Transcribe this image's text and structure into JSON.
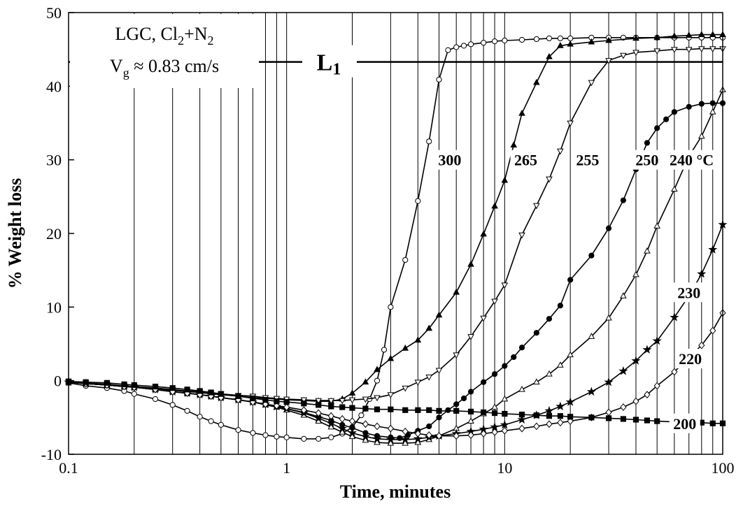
{
  "chart_data": {
    "type": "line",
    "xscale": "log",
    "xlim": [
      0.1,
      100
    ],
    "ylim": [
      -10,
      50
    ],
    "xlabel": "Time, minutes",
    "ylabel": "% Weight loss",
    "xticks": [
      "0.1",
      "1",
      "10",
      "100"
    ],
    "yticks": [
      "-10",
      "0",
      "10",
      "20",
      "30",
      "40",
      "50"
    ],
    "grid": "vertical log gridlines",
    "legend_box": {
      "line1": "LGC, Cl",
      "line1_sub1": "2",
      "line1_mid": "+N",
      "line1_sub2": "2",
      "line2": "V",
      "line2_sub": "g",
      "line2_rest": " ≈ 0.83 cm/s"
    },
    "reference_line": {
      "label": "L",
      "label_sub": "1",
      "y": 43.3
    },
    "series": [
      {
        "name": "300",
        "marker": "open-circle",
        "x": [
          0.1,
          0.12,
          0.15,
          0.18,
          0.2,
          0.25,
          0.3,
          0.35,
          0.4,
          0.45,
          0.5,
          0.6,
          0.7,
          0.8,
          0.9,
          1.0,
          1.2,
          1.4,
          1.6,
          1.8,
          2.0,
          2.2,
          2.4,
          2.6,
          2.8,
          3.0,
          3.5,
          4.0,
          4.5,
          5.0,
          5.5,
          6.0,
          6.5,
          7.0,
          8.0,
          9.0,
          10,
          12,
          14,
          16,
          18,
          20,
          25,
          30,
          35,
          40,
          50,
          60,
          70,
          80,
          90,
          100
        ],
        "y": [
          -0.3,
          -0.7,
          -1.0,
          -1.4,
          -1.8,
          -2.5,
          -3.3,
          -4.1,
          -4.9,
          -5.5,
          -6.0,
          -6.7,
          -7.1,
          -7.4,
          -7.6,
          -7.7,
          -7.9,
          -7.9,
          -7.7,
          -7.2,
          -6.3,
          -4.7,
          -2.5,
          0,
          4.2,
          10,
          16.4,
          24.4,
          32.5,
          40.9,
          44.9,
          45.3,
          45.5,
          45.7,
          45.9,
          46.1,
          46.2,
          46.3,
          46.4,
          46.5,
          46.5,
          46.5,
          46.6,
          46.6,
          46.6,
          46.6,
          46.6,
          46.6,
          46.6,
          46.6,
          46.6,
          46.6
        ]
      },
      {
        "name": "265",
        "marker": "filled-triangle",
        "x": [
          0.1,
          0.12,
          0.15,
          0.18,
          0.2,
          0.25,
          0.3,
          0.35,
          0.4,
          0.45,
          0.5,
          0.6,
          0.7,
          0.8,
          0.9,
          1.0,
          1.2,
          1.4,
          1.6,
          1.8,
          2.0,
          2.3,
          2.6,
          3.0,
          3.5,
          4.0,
          4.5,
          5.0,
          6.0,
          7.0,
          8.0,
          9.0,
          10,
          11,
          12,
          14,
          16,
          18,
          20,
          25,
          30,
          40,
          50,
          60,
          70,
          80,
          90,
          100
        ],
        "y": [
          -0.2,
          -0.4,
          -0.6,
          -0.8,
          -0.9,
          -1.1,
          -1.3,
          -1.5,
          -1.6,
          -1.8,
          -1.9,
          -2.1,
          -2.3,
          -2.4,
          -2.5,
          -2.6,
          -2.7,
          -2.8,
          -2.8,
          -2.5,
          -1.7,
          -0.2,
          1.5,
          3.0,
          4.4,
          5.5,
          7.1,
          8.9,
          12.0,
          15.8,
          19.9,
          23.7,
          27.2,
          32.0,
          36.3,
          40.5,
          44.0,
          45.5,
          45.7,
          46.0,
          46.2,
          46.5,
          46.6,
          46.8,
          46.9,
          47.0,
          47.0,
          47.0
        ]
      },
      {
        "name": "255",
        "marker": "open-triangle-down",
        "x": [
          0.1,
          0.12,
          0.15,
          0.18,
          0.2,
          0.25,
          0.3,
          0.35,
          0.4,
          0.45,
          0.5,
          0.6,
          0.7,
          0.8,
          0.9,
          1.0,
          1.2,
          1.4,
          1.6,
          1.8,
          2.0,
          2.3,
          2.6,
          3.0,
          3.5,
          4.0,
          4.5,
          5.0,
          6.0,
          7.0,
          8.0,
          9.0,
          10,
          12,
          14,
          16,
          18,
          20,
          25,
          30,
          35,
          40,
          50,
          60,
          70,
          80,
          90,
          100
        ],
        "y": [
          -0.1,
          -0.3,
          -0.5,
          -0.7,
          -0.8,
          -1.0,
          -1.2,
          -1.4,
          -1.5,
          -1.7,
          -1.8,
          -2.0,
          -2.1,
          -2.3,
          -2.4,
          -2.5,
          -2.6,
          -2.7,
          -2.7,
          -2.7,
          -2.6,
          -2.5,
          -2.3,
          -1.9,
          -1.0,
          -0.2,
          0.5,
          1.4,
          3.5,
          6.0,
          8.5,
          10.8,
          13.0,
          19.8,
          23.8,
          27.4,
          31.2,
          35.0,
          40.5,
          43.5,
          44.2,
          44.6,
          44.8,
          45.0,
          45.0,
          45.1,
          45.1,
          45.1
        ]
      },
      {
        "name": "250",
        "marker": "filled-circle",
        "x": [
          0.1,
          0.12,
          0.15,
          0.18,
          0.2,
          0.25,
          0.3,
          0.35,
          0.4,
          0.45,
          0.5,
          0.6,
          0.7,
          0.8,
          0.9,
          1.0,
          1.2,
          1.4,
          1.6,
          1.8,
          2.0,
          2.3,
          2.6,
          3.0,
          3.3,
          3.6,
          4.0,
          4.5,
          5.0,
          5.5,
          6.0,
          6.5,
          7.0,
          8.0,
          9.0,
          10,
          11,
          12,
          14,
          16,
          18,
          20,
          25,
          30,
          35,
          40,
          45,
          50,
          55,
          60,
          70,
          80,
          90,
          100
        ],
        "y": [
          -0.2,
          -0.4,
          -0.6,
          -0.8,
          -0.9,
          -1.2,
          -1.5,
          -1.7,
          -1.9,
          -2.1,
          -2.3,
          -2.6,
          -2.9,
          -3.2,
          -3.5,
          -3.8,
          -4.3,
          -4.9,
          -5.4,
          -6.0,
          -6.4,
          -7.1,
          -7.5,
          -7.7,
          -7.8,
          -7.4,
          -6.8,
          -6.2,
          -5.0,
          -4.0,
          -3.2,
          -2.4,
          -1.5,
          -0.2,
          0.9,
          2.0,
          3.2,
          4.5,
          6.5,
          8.4,
          10.2,
          13.7,
          17.0,
          20.7,
          24.5,
          28.7,
          32.3,
          34.3,
          35.5,
          36.5,
          37.2,
          37.6,
          37.7,
          37.7
        ]
      },
      {
        "name": "240 °C",
        "marker": "open-triangle",
        "x": [
          0.1,
          0.12,
          0.15,
          0.18,
          0.2,
          0.25,
          0.3,
          0.35,
          0.4,
          0.45,
          0.5,
          0.6,
          0.7,
          0.8,
          0.9,
          1.0,
          1.2,
          1.4,
          1.6,
          1.8,
          2.0,
          2.3,
          2.6,
          3.0,
          3.5,
          4.0,
          4.5,
          5.0,
          6.0,
          7.0,
          8.0,
          9.0,
          10,
          12,
          14,
          16,
          18,
          20,
          25,
          30,
          35,
          40,
          45,
          50,
          60,
          70,
          80,
          90,
          100
        ],
        "y": [
          -0.2,
          -0.4,
          -0.6,
          -0.8,
          -0.9,
          -1.2,
          -1.5,
          -1.7,
          -1.9,
          -2.1,
          -2.3,
          -2.6,
          -2.9,
          -3.3,
          -3.6,
          -4.0,
          -4.7,
          -5.5,
          -6.3,
          -7.0,
          -7.6,
          -8.1,
          -8.4,
          -8.5,
          -8.5,
          -8.4,
          -8.0,
          -7.5,
          -6.5,
          -5.5,
          -4.5,
          -3.6,
          -2.5,
          -1.2,
          -0.2,
          0.9,
          2.1,
          3.5,
          6.0,
          8.5,
          11.5,
          14.4,
          17.6,
          21.0,
          26.0,
          30.5,
          33.2,
          36.5,
          39.5
        ]
      },
      {
        "name": "230",
        "marker": "filled-star",
        "x": [
          0.1,
          0.12,
          0.15,
          0.18,
          0.2,
          0.25,
          0.3,
          0.35,
          0.4,
          0.45,
          0.5,
          0.6,
          0.7,
          0.8,
          0.9,
          1.0,
          1.2,
          1.4,
          1.6,
          1.8,
          2.0,
          2.3,
          2.6,
          3.0,
          3.5,
          4.0,
          4.5,
          5.0,
          6.0,
          7.0,
          8.0,
          9.0,
          10,
          12,
          14,
          16,
          18,
          20,
          25,
          30,
          35,
          40,
          45,
          50,
          60,
          70,
          80,
          90,
          100
        ],
        "y": [
          -0.2,
          -0.4,
          -0.6,
          -0.8,
          -0.9,
          -1.2,
          -1.5,
          -1.7,
          -1.9,
          -2.1,
          -2.3,
          -2.6,
          -2.9,
          -3.2,
          -3.5,
          -3.8,
          -4.4,
          -5.1,
          -5.8,
          -6.5,
          -7.1,
          -7.6,
          -7.9,
          -8.0,
          -8.0,
          -7.9,
          -7.7,
          -7.5,
          -7.2,
          -6.9,
          -6.6,
          -6.3,
          -6.0,
          -5.3,
          -4.7,
          -4.1,
          -3.5,
          -2.9,
          -1.5,
          -0.2,
          1.3,
          2.7,
          4.2,
          5.4,
          8.6,
          11.5,
          14.5,
          17.8,
          21.2
        ]
      },
      {
        "name": "220",
        "marker": "open-diamond",
        "x": [
          0.1,
          0.12,
          0.15,
          0.18,
          0.2,
          0.25,
          0.3,
          0.35,
          0.4,
          0.45,
          0.5,
          0.6,
          0.7,
          0.8,
          0.9,
          1.0,
          1.2,
          1.4,
          1.6,
          1.8,
          2.0,
          2.3,
          2.6,
          3.0,
          3.5,
          4.0,
          4.5,
          5.0,
          6.0,
          7.0,
          8.0,
          9.0,
          10,
          12,
          14,
          16,
          18,
          20,
          25,
          30,
          35,
          40,
          45,
          50,
          60,
          70,
          80,
          90,
          100
        ],
        "y": [
          -0.2,
          -0.4,
          -0.6,
          -0.8,
          -0.9,
          -1.2,
          -1.5,
          -1.7,
          -1.9,
          -2.1,
          -2.3,
          -2.6,
          -2.9,
          -3.2,
          -3.4,
          -3.6,
          -4.0,
          -4.4,
          -4.8,
          -5.2,
          -5.5,
          -5.9,
          -6.2,
          -6.5,
          -6.9,
          -7.2,
          -7.4,
          -7.5,
          -7.5,
          -7.4,
          -7.2,
          -7.0,
          -6.8,
          -6.5,
          -6.2,
          -5.9,
          -5.7,
          -5.5,
          -5.0,
          -4.3,
          -3.6,
          -2.8,
          -1.9,
          -0.7,
          1.2,
          3.2,
          4.8,
          6.8,
          9.2
        ]
      },
      {
        "name": "200",
        "marker": "filled-square",
        "x": [
          0.1,
          0.12,
          0.15,
          0.18,
          0.2,
          0.25,
          0.3,
          0.35,
          0.4,
          0.45,
          0.5,
          0.6,
          0.7,
          0.8,
          0.9,
          1.0,
          1.2,
          1.4,
          1.6,
          1.8,
          2.0,
          2.3,
          2.6,
          3.0,
          3.5,
          4.0,
          4.5,
          5.0,
          6.0,
          7.0,
          8.0,
          9.0,
          10,
          12,
          14,
          16,
          18,
          20,
          25,
          30,
          35,
          40,
          45,
          50,
          60,
          70,
          80,
          90,
          100
        ],
        "y": [
          -0.1,
          -0.2,
          -0.3,
          -0.5,
          -0.6,
          -0.8,
          -1.0,
          -1.2,
          -1.4,
          -1.6,
          -1.8,
          -2.1,
          -2.4,
          -2.6,
          -2.8,
          -2.9,
          -3.1,
          -3.3,
          -3.5,
          -3.6,
          -3.7,
          -3.8,
          -3.9,
          -3.9,
          -4.0,
          -4.0,
          -4.0,
          -4.1,
          -4.1,
          -4.2,
          -4.3,
          -4.4,
          -4.5,
          -4.6,
          -4.7,
          -4.8,
          -4.8,
          -4.9,
          -5.0,
          -5.1,
          -5.2,
          -5.3,
          -5.4,
          -5.5,
          -5.6,
          -5.7,
          -5.7,
          -5.8,
          -5.8
        ]
      }
    ]
  }
}
